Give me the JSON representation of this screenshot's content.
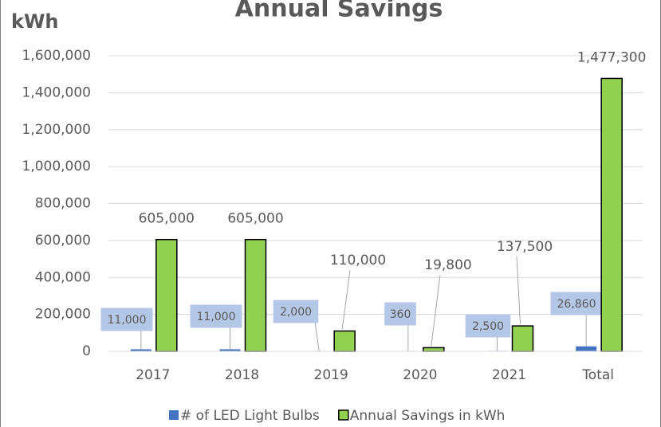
{
  "chart_data": {
    "type": "bar",
    "title": "Annual Savings",
    "y_label": "kWh",
    "categories": [
      "2017",
      "2018",
      "2019",
      "2020",
      "2021",
      "Total"
    ],
    "series": [
      {
        "name": "# of LED Light Bulbs",
        "color": "#4472c4",
        "values": [
          11000,
          11000,
          2000,
          360,
          2500,
          26860
        ],
        "value_labels": [
          "11,000",
          "11,000",
          "2,000",
          "360",
          "2,500",
          "26,860"
        ]
      },
      {
        "name": "Annual Savings in kWh",
        "color": "#92d050",
        "edgecolor": "#000000",
        "values": [
          605000,
          605000,
          110000,
          19800,
          137500,
          1477300
        ],
        "value_labels": [
          "605,000",
          "605,000",
          "110,000",
          "19,800",
          "137,500",
          "1,477,300"
        ]
      }
    ],
    "ylim": [
      0,
      1600000
    ],
    "yticks": [
      0,
      {
        "value": 200000,
        "label": "200,000"
      },
      {
        "value": 400000,
        "label": "400,000"
      },
      {
        "value": 600000,
        "label": "600,000"
      },
      {
        "value": 800000,
        "label": "800,000"
      },
      {
        "value": 1000000,
        "label": "1,000,000"
      },
      {
        "value": 1200000,
        "label": "1,200,000"
      },
      {
        "value": 1400000,
        "label": "1,400,000"
      },
      {
        "value": 1600000,
        "label": "1,600,000"
      }
    ],
    "grid": true,
    "legend": "bottom"
  }
}
